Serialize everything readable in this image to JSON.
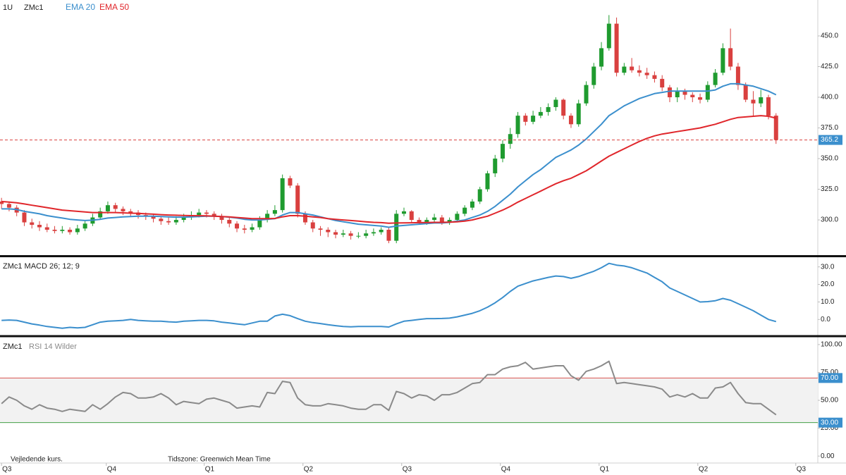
{
  "chart_data": [
    {
      "type": "candlestick",
      "interval": "1U",
      "symbol": "ZMc1",
      "x": [
        0,
        1,
        2,
        3,
        4,
        5,
        6,
        7,
        8,
        9,
        10,
        11,
        12,
        13,
        14,
        15,
        16,
        17,
        18,
        19,
        20,
        21,
        22,
        23,
        24,
        25,
        26,
        27,
        28,
        29,
        30,
        31,
        32,
        33,
        34,
        35,
        36,
        37,
        38,
        39,
        40,
        41,
        42,
        43,
        44,
        45,
        46,
        47,
        48,
        49,
        50,
        51,
        52,
        53,
        54,
        55,
        56,
        57,
        58,
        59,
        60,
        61,
        62,
        63,
        64,
        65,
        66,
        67,
        68,
        69,
        70,
        71,
        72,
        73,
        74,
        75,
        76,
        77,
        78,
        79,
        80,
        81,
        82,
        83,
        84,
        85,
        86,
        87,
        88,
        89,
        90,
        91,
        92,
        93,
        94,
        95,
        96,
        97,
        98,
        99,
        100,
        101,
        102
      ],
      "ohlc": [
        [
          315,
          318,
          309,
          313
        ],
        [
          313,
          315,
          307,
          310
        ],
        [
          310,
          312,
          303,
          306
        ],
        [
          306,
          308,
          295,
          298
        ],
        [
          298,
          301,
          293,
          296
        ],
        [
          296,
          299,
          291,
          294
        ],
        [
          294,
          297,
          290,
          292
        ],
        [
          292,
          295,
          289,
          291
        ],
        [
          291,
          295,
          289,
          292
        ],
        [
          292,
          294,
          288,
          290
        ],
        [
          290,
          296,
          288,
          293
        ],
        [
          293,
          299,
          291,
          297
        ],
        [
          297,
          305,
          295,
          302
        ],
        [
          302,
          310,
          300,
          307
        ],
        [
          307,
          315,
          305,
          312
        ],
        [
          312,
          314,
          306,
          309
        ],
        [
          309,
          311,
          304,
          307
        ],
        [
          307,
          309,
          303,
          306
        ],
        [
          306,
          308,
          301,
          304
        ],
        [
          304,
          306,
          300,
          303
        ],
        [
          303,
          305,
          298,
          301
        ],
        [
          301,
          303,
          296,
          299
        ],
        [
          299,
          302,
          296,
          298
        ],
        [
          298,
          303,
          296,
          300
        ],
        [
          300,
          305,
          298,
          302
        ],
        [
          302,
          307,
          300,
          304
        ],
        [
          304,
          309,
          302,
          306
        ],
        [
          306,
          308,
          302,
          305
        ],
        [
          305,
          307,
          300,
          303
        ],
        [
          303,
          305,
          297,
          300
        ],
        [
          300,
          302,
          294,
          297
        ],
        [
          297,
          299,
          290,
          293
        ],
        [
          293,
          296,
          289,
          292
        ],
        [
          292,
          297,
          290,
          294
        ],
        [
          294,
          303,
          292,
          300
        ],
        [
          300,
          308,
          298,
          305
        ],
        [
          305,
          312,
          303,
          308
        ],
        [
          308,
          337,
          306,
          334
        ],
        [
          334,
          336,
          326,
          328
        ],
        [
          328,
          330,
          302,
          305
        ],
        [
          305,
          307,
          296,
          298
        ],
        [
          298,
          300,
          290,
          293
        ],
        [
          293,
          295,
          287,
          292
        ],
        [
          292,
          294,
          286,
          290
        ],
        [
          290,
          292,
          285,
          288
        ],
        [
          288,
          292,
          286,
          289
        ],
        [
          289,
          291,
          284,
          287
        ],
        [
          287,
          290,
          285,
          287
        ],
        [
          287,
          292,
          285,
          289
        ],
        [
          289,
          293,
          287,
          290
        ],
        [
          290,
          294,
          288,
          292
        ],
        [
          292,
          294,
          281,
          283
        ],
        [
          283,
          308,
          281,
          305
        ],
        [
          305,
          310,
          303,
          307
        ],
        [
          307,
          308,
          298,
          300
        ],
        [
          300,
          302,
          296,
          298
        ],
        [
          298,
          302,
          296,
          300
        ],
        [
          300,
          305,
          298,
          302
        ],
        [
          302,
          304,
          296,
          298
        ],
        [
          298,
          302,
          296,
          300
        ],
        [
          300,
          307,
          298,
          305
        ],
        [
          305,
          312,
          303,
          310
        ],
        [
          310,
          317,
          308,
          315
        ],
        [
          315,
          327,
          313,
          325
        ],
        [
          325,
          340,
          323,
          338
        ],
        [
          338,
          353,
          335,
          350
        ],
        [
          350,
          365,
          347,
          362
        ],
        [
          362,
          375,
          358,
          370
        ],
        [
          370,
          388,
          367,
          385
        ],
        [
          385,
          387,
          377,
          380
        ],
        [
          380,
          389,
          378,
          385
        ],
        [
          385,
          392,
          383,
          388
        ],
        [
          388,
          395,
          385,
          392
        ],
        [
          392,
          400,
          389,
          398
        ],
        [
          398,
          399,
          382,
          385
        ],
        [
          385,
          387,
          375,
          378
        ],
        [
          378,
          398,
          376,
          395
        ],
        [
          395,
          413,
          393,
          410
        ],
        [
          410,
          428,
          407,
          425
        ],
        [
          425,
          445,
          422,
          440
        ],
        [
          440,
          467,
          438,
          460
        ],
        [
          460,
          465,
          417,
          420
        ],
        [
          420,
          428,
          418,
          425
        ],
        [
          425,
          432,
          420,
          422
        ],
        [
          422,
          426,
          417,
          420
        ],
        [
          420,
          424,
          415,
          418
        ],
        [
          418,
          421,
          412,
          415
        ],
        [
          415,
          418,
          405,
          408
        ],
        [
          408,
          410,
          396,
          400
        ],
        [
          400,
          408,
          396,
          405
        ],
        [
          405,
          407,
          398,
          402
        ],
        [
          402,
          404,
          396,
          400
        ],
        [
          400,
          403,
          395,
          398
        ],
        [
          398,
          413,
          396,
          410
        ],
        [
          410,
          423,
          408,
          420
        ],
        [
          420,
          444,
          418,
          440
        ],
        [
          440,
          456,
          422,
          425
        ],
        [
          425,
          428,
          406,
          410
        ],
        [
          410,
          412,
          396,
          398
        ],
        [
          398,
          405,
          385,
          395
        ],
        [
          395,
          406,
          392,
          400
        ],
        [
          400,
          402,
          382,
          385
        ],
        [
          385,
          387,
          362,
          365.2
        ]
      ],
      "up_color": "#1f9b2f",
      "down_color": "#d9403f",
      "series": [
        {
          "name": "EMA 20",
          "color": "#3b8fcd",
          "values": [
            309,
            309,
            308.5,
            307,
            306,
            305,
            303.5,
            302.5,
            301.5,
            300.5,
            300,
            299.5,
            299.8,
            300.5,
            301.5,
            302,
            302.5,
            302.8,
            303,
            303,
            303,
            302.8,
            302.5,
            302.3,
            302.3,
            302.5,
            302.8,
            303,
            303,
            302.8,
            302.3,
            301.5,
            300.5,
            300,
            300,
            300.5,
            301,
            304,
            306,
            306,
            305,
            304,
            302.5,
            301,
            299.5,
            298.5,
            297.5,
            296.5,
            296,
            295.5,
            295,
            294,
            295,
            295.5,
            296,
            296.5,
            297,
            297.5,
            297.5,
            298,
            299,
            300,
            302,
            304,
            307,
            311,
            316,
            321,
            327,
            332,
            337,
            341,
            346,
            351,
            354,
            357,
            361,
            366,
            372,
            378,
            385,
            389,
            393,
            396,
            399,
            401,
            403,
            404,
            405,
            405,
            405,
            405,
            405,
            405,
            406,
            409,
            411,
            411,
            410,
            409,
            407,
            405,
            402
          ]
        },
        {
          "name": "EMA 50",
          "color": "#e0262b",
          "values": [
            315,
            314.5,
            314,
            313,
            312,
            311,
            310,
            309,
            308,
            307.5,
            307,
            306.5,
            306,
            306,
            306,
            306,
            305.8,
            305.5,
            305.3,
            305,
            304.7,
            304.3,
            304,
            303.8,
            303.6,
            303.5,
            303.4,
            303.3,
            303.1,
            302.8,
            302.5,
            302,
            301.5,
            301,
            301,
            301,
            301.2,
            302.5,
            303.5,
            303.5,
            303,
            302.5,
            302,
            301,
            300.5,
            300,
            299.5,
            299,
            298.5,
            298,
            297.8,
            297.3,
            297.5,
            297.6,
            297.7,
            297.8,
            297.9,
            298,
            298,
            298.2,
            298.5,
            299,
            300,
            301.5,
            303,
            305.5,
            308,
            311,
            314.5,
            317.5,
            320.5,
            323.5,
            326.5,
            329.5,
            332,
            334,
            337,
            340,
            344,
            348,
            352,
            355,
            358,
            361,
            364,
            366.5,
            368.5,
            370,
            371,
            372,
            373,
            374,
            375,
            376.5,
            378,
            380,
            382,
            383.5,
            384,
            384.5,
            385,
            384.5,
            383
          ]
        }
      ],
      "last_value": 365.2,
      "xlim": [
        -0.2,
        107.5
      ],
      "xticks": [
        {
          "value": 0,
          "label": "Q3"
        },
        {
          "value": 13.8,
          "label": "Q4"
        },
        {
          "value": 26.7,
          "label": "Q1"
        },
        {
          "value": 39.7,
          "label": "Q2"
        },
        {
          "value": 52.7,
          "label": "Q3"
        },
        {
          "value": 65.7,
          "label": "Q4"
        },
        {
          "value": 78.7,
          "label": "Q1"
        },
        {
          "value": 91.7,
          "label": "Q2"
        },
        {
          "value": 104.6,
          "label": "Q3"
        }
      ],
      "ylim": [
        273.6,
        477
      ],
      "yticks": [
        {
          "value": 300,
          "label": "300.0"
        },
        {
          "value": 325,
          "label": "325.0"
        },
        {
          "value": 350,
          "label": "350.0"
        },
        {
          "value": 375,
          "label": "375.0"
        },
        {
          "value": 400,
          "label": "400.0"
        },
        {
          "value": 425,
          "label": "425.0"
        },
        {
          "value": 450,
          "label": "450.0"
        }
      ]
    },
    {
      "type": "line",
      "title": "ZMc1 MACD 26; 12; 9",
      "color": "#3b8fcd",
      "values": [
        -0.5,
        -0.3,
        -0.5,
        -1.5,
        -2.5,
        -3.2,
        -4,
        -4.5,
        -5,
        -4.5,
        -4.8,
        -4.5,
        -3,
        -1.5,
        -1,
        -0.8,
        -0.5,
        0,
        -0.5,
        -0.8,
        -1,
        -1,
        -1.3,
        -1.5,
        -1,
        -0.8,
        -0.5,
        -0.5,
        -0.8,
        -1.5,
        -2,
        -2.5,
        -3,
        -2,
        -1,
        -1,
        2,
        3,
        2.2,
        0.5,
        -1,
        -1.8,
        -2.3,
        -3,
        -3.5,
        -4,
        -4.2,
        -4,
        -4,
        -4,
        -4,
        -4.3,
        -2.5,
        -1,
        -0.5,
        0,
        0.5,
        0.5,
        0.6,
        0.8,
        1.5,
        2.5,
        3.5,
        5,
        7,
        9.5,
        12.5,
        16,
        19,
        20.5,
        22,
        23,
        24,
        24.8,
        24.5,
        23.5,
        24.5,
        26,
        27.5,
        29.5,
        32,
        31,
        30.5,
        29.5,
        28,
        26.5,
        24,
        21.5,
        18,
        16,
        14,
        12,
        10,
        10.2,
        10.7,
        12,
        11,
        9,
        7,
        5,
        2.5,
        0,
        -1.2
      ],
      "ylim": [
        -8.3,
        35.1
      ],
      "yticks": [
        {
          "value": 0,
          "label": "0.0"
        },
        {
          "value": 10,
          "label": "10.0"
        },
        {
          "value": 20,
          "label": "20.0"
        },
        {
          "value": 30,
          "label": "30.0"
        }
      ]
    },
    {
      "type": "line",
      "symbol": "ZMc1",
      "title": "RSI 14 Wilder",
      "color": "#8a8a8a",
      "values": [
        47,
        53,
        50,
        45,
        42,
        46,
        43,
        42,
        40,
        42,
        41,
        40,
        46,
        42,
        47,
        53,
        57,
        56,
        52,
        52,
        53,
        56,
        52,
        46,
        49,
        48,
        47,
        51,
        52,
        50,
        48,
        43,
        44,
        45,
        44,
        57,
        56,
        67,
        66,
        52,
        46,
        45,
        45,
        47,
        46,
        45,
        43,
        42,
        42,
        46,
        46,
        41,
        58,
        56,
        52,
        55,
        54,
        50,
        55,
        55,
        57,
        61,
        65,
        66,
        73,
        73,
        78,
        80,
        81,
        84,
        78,
        79,
        80,
        81,
        81,
        72,
        68,
        76,
        78,
        81,
        85,
        65,
        66,
        65,
        64,
        63,
        62,
        60,
        53,
        55,
        53,
        56,
        52,
        52,
        61,
        62,
        66,
        56,
        48,
        47,
        47,
        42,
        37
      ],
      "bands": [
        {
          "value": 70,
          "label": "70.00",
          "color": "#d9534f"
        },
        {
          "value": 30,
          "label": "30.00",
          "color": "#43a047"
        }
      ],
      "ylim": [
        -5.6,
        106.25
      ],
      "yticks": [
        {
          "value": 0,
          "label": "0.00"
        },
        {
          "value": 25,
          "label": "25.00"
        },
        {
          "value": 50,
          "label": "50.00"
        },
        {
          "value": 75,
          "label": "75.00"
        },
        {
          "value": 100,
          "label": "100.00"
        }
      ],
      "footnotes": [
        "Vejledende kurs.",
        "Tidszone: Greenwich Mean Time"
      ]
    }
  ]
}
